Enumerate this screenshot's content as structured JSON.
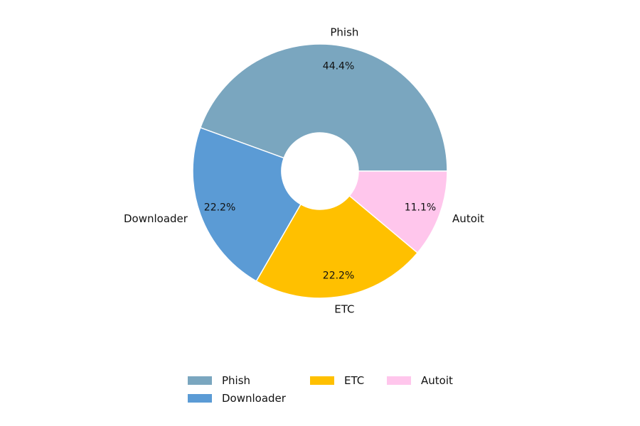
{
  "chart_data": {
    "type": "pie",
    "donut": true,
    "start_angle_deg": 0,
    "direction": "counterclockwise",
    "slices": [
      {
        "label": "Phish",
        "value": 44.4,
        "pct_label": "44.4%",
        "color": "#7aa6bf"
      },
      {
        "label": "Downloader",
        "value": 22.2,
        "pct_label": "22.2%",
        "color": "#5b9bd5"
      },
      {
        "label": "ETC",
        "value": 22.2,
        "pct_label": "22.2%",
        "color": "#ffc000"
      },
      {
        "label": "Autoit",
        "value": 11.1,
        "pct_label": "11.1%",
        "color": "#ffc6ec"
      }
    ],
    "legend": {
      "placement": "bottom-center",
      "columns": 3,
      "entries": [
        "Phish",
        "Downloader",
        "ETC",
        "Autoit"
      ]
    }
  }
}
